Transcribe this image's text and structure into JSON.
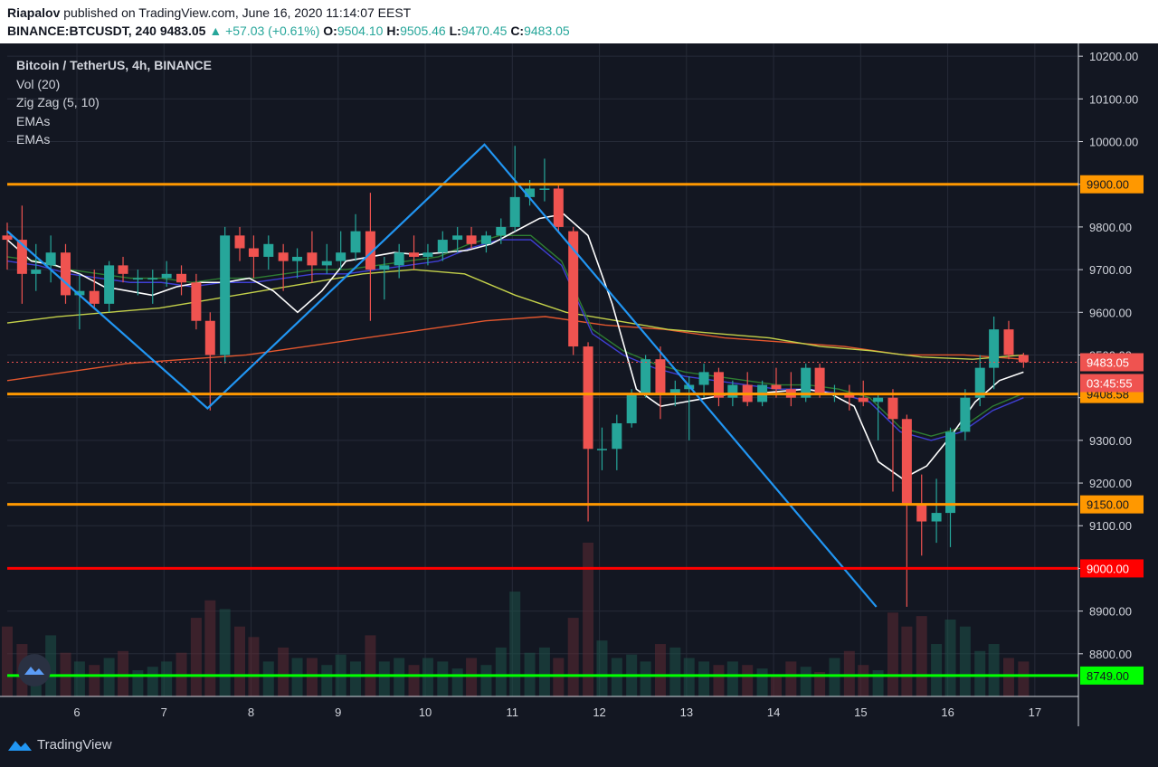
{
  "header": {
    "author": "Riapalov",
    "published_text": " published on TradingView.com, June 16, 2020 11:14:07 EEST",
    "symbol": "BINANCE:BTCUSDT, 240",
    "last": "9483.05",
    "change_arrow": "▲",
    "change": "+57.03 (+0.61%)",
    "o_label": "O:",
    "o": "9504.10",
    "h_label": "H:",
    "h": "9505.46",
    "l_label": "L:",
    "l": "9470.45",
    "c_label": "C:",
    "c": "9483.05"
  },
  "legend": {
    "title": "Bitcoin / TetherUS, 4h, BINANCE",
    "vol": "Vol (20)",
    "zigzag": "Zig Zag (5, 10)",
    "ema1": "EMAs",
    "ema2": "EMAs"
  },
  "branding": {
    "name": "TradingView",
    "icon": "tradingview-logo-icon"
  },
  "colors": {
    "background": "#131722",
    "up": "#26a69a",
    "down": "#ef5350",
    "zigzag": "#2196f3",
    "orange_level": "#ff9800",
    "red_level": "#ff0000",
    "green_level": "#00ff00"
  },
  "chart_data": {
    "type": "candlestick",
    "symbol": "BTCUSDT",
    "interval": "4h",
    "x_ticks": [
      "6",
      "7",
      "8",
      "9",
      "10",
      "11",
      "12",
      "13",
      "14",
      "15",
      "16",
      "17"
    ],
    "x_tick_values": [
      6,
      7,
      8,
      9,
      10,
      11,
      12,
      13,
      14,
      15,
      16,
      17
    ],
    "y_ticks": [
      "10200.00",
      "10100.00",
      "10000.00",
      "9900.00",
      "9800.00",
      "9700.00",
      "9600.00",
      "9500.00",
      "9400.00",
      "9300.00",
      "9200.00",
      "9100.00",
      "9000.00",
      "8900.00",
      "8800.00"
    ],
    "y_tick_values": [
      10200,
      10100,
      10000,
      9900,
      9800,
      9700,
      9600,
      9500,
      9400,
      9300,
      9200,
      9100,
      9000,
      8900,
      8800
    ],
    "xlim": [
      5.2,
      17.5
    ],
    "ylim": [
      8700,
      10230
    ],
    "grid": true,
    "candles": [
      {
        "t": 5.2,
        "o": 9780,
        "h": 9810,
        "l": 9700,
        "c": 9770
      },
      {
        "t": 5.37,
        "o": 9770,
        "h": 9850,
        "l": 9620,
        "c": 9690
      },
      {
        "t": 5.53,
        "o": 9690,
        "h": 9760,
        "l": 9650,
        "c": 9700
      },
      {
        "t": 5.7,
        "o": 9710,
        "h": 9780,
        "l": 9670,
        "c": 9740
      },
      {
        "t": 5.87,
        "o": 9740,
        "h": 9760,
        "l": 9620,
        "c": 9640
      },
      {
        "t": 6.03,
        "o": 9640,
        "h": 9690,
        "l": 9560,
        "c": 9650
      },
      {
        "t": 6.2,
        "o": 9650,
        "h": 9700,
        "l": 9610,
        "c": 9620
      },
      {
        "t": 6.37,
        "o": 9620,
        "h": 9720,
        "l": 9600,
        "c": 9710
      },
      {
        "t": 6.53,
        "o": 9710,
        "h": 9730,
        "l": 9670,
        "c": 9690
      },
      {
        "t": 6.7,
        "o": 9680,
        "h": 9700,
        "l": 9640,
        "c": 9680
      },
      {
        "t": 6.87,
        "o": 9680,
        "h": 9700,
        "l": 9620,
        "c": 9680
      },
      {
        "t": 7.03,
        "o": 9680,
        "h": 9720,
        "l": 9660,
        "c": 9690
      },
      {
        "t": 7.2,
        "o": 9690,
        "h": 9710,
        "l": 9640,
        "c": 9670
      },
      {
        "t": 7.37,
        "o": 9670,
        "h": 9690,
        "l": 9560,
        "c": 9580
      },
      {
        "t": 7.53,
        "o": 9580,
        "h": 9600,
        "l": 9370,
        "c": 9500
      },
      {
        "t": 7.7,
        "o": 9500,
        "h": 9800,
        "l": 9480,
        "c": 9780
      },
      {
        "t": 7.87,
        "o": 9780,
        "h": 9800,
        "l": 9720,
        "c": 9750
      },
      {
        "t": 8.03,
        "o": 9750,
        "h": 9780,
        "l": 9680,
        "c": 9730
      },
      {
        "t": 8.2,
        "o": 9730,
        "h": 9780,
        "l": 9700,
        "c": 9760
      },
      {
        "t": 8.37,
        "o": 9740,
        "h": 9760,
        "l": 9650,
        "c": 9720
      },
      {
        "t": 8.53,
        "o": 9720,
        "h": 9750,
        "l": 9680,
        "c": 9730
      },
      {
        "t": 8.7,
        "o": 9740,
        "h": 9790,
        "l": 9670,
        "c": 9710
      },
      {
        "t": 8.87,
        "o": 9710,
        "h": 9760,
        "l": 9690,
        "c": 9720
      },
      {
        "t": 9.03,
        "o": 9720,
        "h": 9790,
        "l": 9700,
        "c": 9740
      },
      {
        "t": 9.2,
        "o": 9740,
        "h": 9830,
        "l": 9720,
        "c": 9790
      },
      {
        "t": 9.37,
        "o": 9790,
        "h": 9880,
        "l": 9580,
        "c": 9700
      },
      {
        "t": 9.53,
        "o": 9700,
        "h": 9730,
        "l": 9630,
        "c": 9710
      },
      {
        "t": 9.7,
        "o": 9710,
        "h": 9760,
        "l": 9680,
        "c": 9740
      },
      {
        "t": 9.87,
        "o": 9740,
        "h": 9780,
        "l": 9700,
        "c": 9730
      },
      {
        "t": 10.03,
        "o": 9730,
        "h": 9760,
        "l": 9710,
        "c": 9740
      },
      {
        "t": 10.2,
        "o": 9740,
        "h": 9790,
        "l": 9720,
        "c": 9770
      },
      {
        "t": 10.37,
        "o": 9770,
        "h": 9800,
        "l": 9740,
        "c": 9780
      },
      {
        "t": 10.53,
        "o": 9780,
        "h": 9800,
        "l": 9750,
        "c": 9760
      },
      {
        "t": 10.7,
        "o": 9760,
        "h": 9790,
        "l": 9740,
        "c": 9780
      },
      {
        "t": 10.87,
        "o": 9780,
        "h": 9820,
        "l": 9760,
        "c": 9800
      },
      {
        "t": 11.03,
        "o": 9800,
        "h": 9990,
        "l": 9790,
        "c": 9870
      },
      {
        "t": 11.2,
        "o": 9870,
        "h": 9910,
        "l": 9850,
        "c": 9890
      },
      {
        "t": 11.37,
        "o": 9890,
        "h": 9960,
        "l": 9860,
        "c": 9890
      },
      {
        "t": 11.53,
        "o": 9890,
        "h": 9900,
        "l": 9790,
        "c": 9800
      },
      {
        "t": 11.7,
        "o": 9790,
        "h": 9800,
        "l": 9500,
        "c": 9520
      },
      {
        "t": 11.87,
        "o": 9520,
        "h": 9530,
        "l": 9110,
        "c": 9280
      },
      {
        "t": 12.03,
        "o": 9280,
        "h": 9330,
        "l": 9230,
        "c": 9280
      },
      {
        "t": 12.2,
        "o": 9280,
        "h": 9360,
        "l": 9230,
        "c": 9340
      },
      {
        "t": 12.37,
        "o": 9340,
        "h": 9420,
        "l": 9330,
        "c": 9410
      },
      {
        "t": 12.53,
        "o": 9410,
        "h": 9500,
        "l": 9400,
        "c": 9490
      },
      {
        "t": 12.7,
        "o": 9490,
        "h": 9520,
        "l": 9350,
        "c": 9410
      },
      {
        "t": 12.87,
        "o": 9410,
        "h": 9440,
        "l": 9380,
        "c": 9420
      },
      {
        "t": 13.03,
        "o": 9420,
        "h": 9450,
        "l": 9300,
        "c": 9430
      },
      {
        "t": 13.2,
        "o": 9430,
        "h": 9480,
        "l": 9400,
        "c": 9460
      },
      {
        "t": 13.37,
        "o": 9460,
        "h": 9470,
        "l": 9380,
        "c": 9400
      },
      {
        "t": 13.53,
        "o": 9400,
        "h": 9440,
        "l": 9380,
        "c": 9430
      },
      {
        "t": 13.7,
        "o": 9430,
        "h": 9460,
        "l": 9380,
        "c": 9390
      },
      {
        "t": 13.87,
        "o": 9390,
        "h": 9440,
        "l": 9380,
        "c": 9430
      },
      {
        "t": 14.03,
        "o": 9430,
        "h": 9470,
        "l": 9400,
        "c": 9420
      },
      {
        "t": 14.2,
        "o": 9420,
        "h": 9460,
        "l": 9380,
        "c": 9400
      },
      {
        "t": 14.37,
        "o": 9400,
        "h": 9480,
        "l": 9390,
        "c": 9470
      },
      {
        "t": 14.53,
        "o": 9470,
        "h": 9480,
        "l": 9400,
        "c": 9410
      },
      {
        "t": 14.7,
        "o": 9410,
        "h": 9430,
        "l": 9390,
        "c": 9410
      },
      {
        "t": 14.87,
        "o": 9410,
        "h": 9430,
        "l": 9370,
        "c": 9400
      },
      {
        "t": 15.03,
        "o": 9400,
        "h": 9440,
        "l": 9380,
        "c": 9390
      },
      {
        "t": 15.2,
        "o": 9390,
        "h": 9410,
        "l": 9300,
        "c": 9400
      },
      {
        "t": 15.37,
        "o": 9400,
        "h": 9420,
        "l": 9180,
        "c": 9350
      },
      {
        "t": 15.53,
        "o": 9350,
        "h": 9360,
        "l": 8910,
        "c": 9150
      },
      {
        "t": 15.7,
        "o": 9150,
        "h": 9220,
        "l": 9030,
        "c": 9110
      },
      {
        "t": 15.87,
        "o": 9110,
        "h": 9210,
        "l": 9060,
        "c": 9130
      },
      {
        "t": 16.03,
        "o": 9130,
        "h": 9330,
        "l": 9050,
        "c": 9320
      },
      {
        "t": 16.2,
        "o": 9320,
        "h": 9420,
        "l": 9300,
        "c": 9400
      },
      {
        "t": 16.37,
        "o": 9400,
        "h": 9500,
        "l": 9380,
        "c": 9470
      },
      {
        "t": 16.53,
        "o": 9470,
        "h": 9590,
        "l": 9420,
        "c": 9560
      },
      {
        "t": 16.7,
        "o": 9560,
        "h": 9580,
        "l": 9490,
        "c": 9500
      },
      {
        "t": 16.87,
        "o": 9500,
        "h": 9505,
        "l": 9470,
        "c": 9483
      }
    ],
    "volumes": [
      40,
      30,
      22,
      35,
      25,
      20,
      18,
      22,
      26,
      15,
      17,
      20,
      25,
      45,
      55,
      50,
      40,
      34,
      20,
      28,
      22,
      22,
      18,
      24,
      20,
      35,
      20,
      22,
      18,
      22,
      20,
      16,
      22,
      18,
      28,
      60,
      25,
      28,
      22,
      45,
      88,
      32,
      22,
      24,
      20,
      30,
      28,
      22,
      20,
      18,
      20,
      18,
      16,
      12,
      20,
      17,
      14,
      22,
      26,
      18,
      15,
      48,
      40,
      46,
      30,
      44,
      40,
      26,
      30,
      22,
      20
    ],
    "zigzag": [
      {
        "t": 5.2,
        "v": 9790
      },
      {
        "t": 7.5,
        "v": 9375
      },
      {
        "t": 10.68,
        "v": 9993
      },
      {
        "t": 15.18,
        "v": 8910
      }
    ],
    "ema_fast": [
      9770,
      9720,
      9710,
      9690,
      9660,
      9650,
      9640,
      9660,
      9670,
      9670,
      9680,
      9650,
      9600,
      9650,
      9720,
      9730,
      9740,
      9735,
      9740,
      9745,
      9760,
      9790,
      9820,
      9830,
      9780,
      9620,
      9420,
      9380,
      9390,
      9400,
      9410,
      9410,
      9415,
      9420,
      9410,
      9380,
      9250,
      9210,
      9240,
      9310,
      9390,
      9440,
      9460
    ],
    "ema_slow": [
      9730,
      9720,
      9700,
      9690,
      9680,
      9680,
      9670,
      9680,
      9680,
      9690,
      9700,
      9700,
      9710,
      9720,
      9730,
      9760,
      9780,
      9780,
      9720,
      9560,
      9510,
      9480,
      9460,
      9450,
      9440,
      9430,
      9430,
      9420,
      9400,
      9330,
      9310,
      9330,
      9380,
      9410
    ],
    "ema_100": [
      9575,
      9590,
      9600,
      9610,
      9630,
      9650,
      9670,
      9690,
      9700,
      9690,
      9640,
      9600,
      9580,
      9560,
      9550,
      9540,
      9520,
      9510,
      9495,
      9490,
      9500
    ],
    "ema_200": [
      9440,
      9460,
      9480,
      9490,
      9500,
      9520,
      9540,
      9560,
      9580,
      9590,
      9570,
      9560,
      9540,
      9530,
      9520,
      9500,
      9500,
      9490
    ],
    "levels": [
      {
        "label": "9900.00",
        "value": 9900,
        "color": "#ff9800"
      },
      {
        "label": "9408.58",
        "value": 9408.58,
        "color": "#ff9800"
      },
      {
        "label": "9150.00",
        "value": 9150,
        "color": "#ff9800"
      },
      {
        "label": "9000.00",
        "value": 9000,
        "color": "#ff0000"
      },
      {
        "label": "8749.00",
        "value": 8749,
        "color": "#00ff00"
      }
    ],
    "last_price": {
      "label": "9483.05",
      "value": 9483.05,
      "countdown": "03:45:55"
    }
  }
}
